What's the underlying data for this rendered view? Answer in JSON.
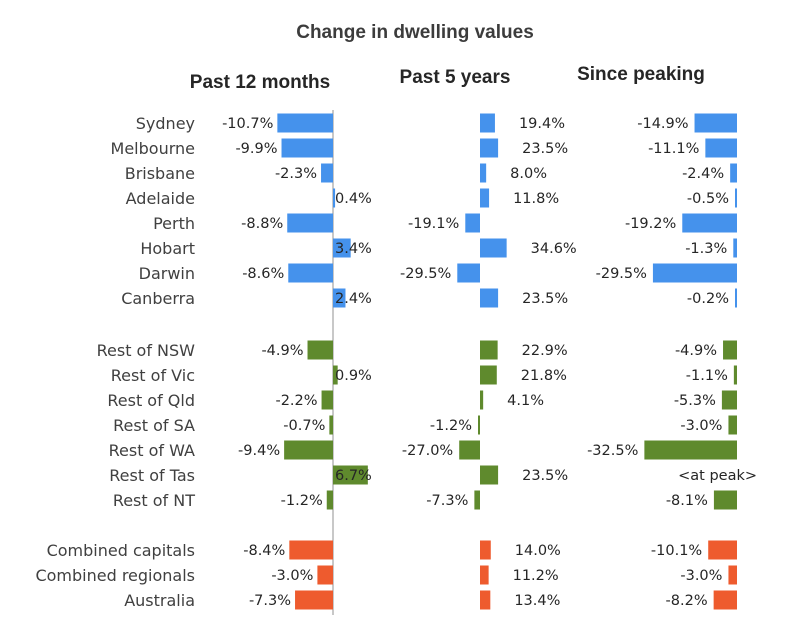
{
  "chart_data": {
    "type": "bar",
    "orientation": "horizontal",
    "title": "Change in dwelling values",
    "categories": [
      "Sydney",
      "Melbourne",
      "Brisbane",
      "Adelaide",
      "Perth",
      "Hobart",
      "Darwin",
      "Canberra",
      "Rest of NSW",
      "Rest of Vic",
      "Rest of Qld",
      "Rest of SA",
      "Rest of WA",
      "Rest of Tas",
      "Rest of NT",
      "Combined capitals",
      "Combined regionals",
      "Australia"
    ],
    "groups": [
      {
        "color": "#4592ec",
        "count": 8
      },
      {
        "color": "#5f8a2d",
        "count": 7
      },
      {
        "color": "#ee5b2e",
        "count": 3
      }
    ],
    "series": [
      {
        "panel_title": "Past 12 months",
        "values": [
          -10.7,
          -9.9,
          -2.3,
          0.4,
          -8.8,
          3.4,
          -8.6,
          2.4,
          -4.9,
          0.9,
          -2.2,
          -0.7,
          -9.4,
          6.7,
          -1.2,
          -8.4,
          -3.0,
          -7.3
        ],
        "labels": [
          "-10.7%",
          "-9.9%",
          "-2.3%",
          "0.4%",
          "-8.8%",
          "3.4%",
          "-8.6%",
          "2.4%",
          "-4.9%",
          "0.9%",
          "-2.2%",
          "-0.7%",
          "-9.4%",
          "6.7%",
          "-1.2%",
          "-8.4%",
          "-3.0%",
          "-7.3%"
        ]
      },
      {
        "panel_title": "Past 5 years",
        "values": [
          19.4,
          23.5,
          8.0,
          11.8,
          -19.1,
          34.6,
          -29.5,
          23.5,
          22.9,
          21.8,
          4.1,
          -1.2,
          -27.0,
          23.5,
          -7.3,
          14.0,
          11.2,
          13.4
        ],
        "labels": [
          "19.4%",
          "23.5%",
          "8.0%",
          "11.8%",
          "-19.1%",
          "34.6%",
          "-29.5%",
          "23.5%",
          "22.9%",
          "21.8%",
          "4.1%",
          "-1.2%",
          "-27.0%",
          "23.5%",
          "-7.3%",
          "14.0%",
          "11.2%",
          "13.4%"
        ]
      },
      {
        "panel_title": "Since peaking",
        "values": [
          -14.9,
          -11.1,
          -2.4,
          -0.5,
          -19.2,
          -1.3,
          -29.5,
          -0.2,
          -4.9,
          -1.1,
          -5.3,
          -3.0,
          -32.5,
          null,
          -8.1,
          -10.1,
          -3.0,
          -8.2
        ],
        "labels": [
          "-14.9%",
          "-11.1%",
          "-2.4%",
          "-0.5%",
          "-19.2%",
          "-1.3%",
          "-29.5%",
          "-0.2%",
          "-4.9%",
          "-1.1%",
          "-5.3%",
          "-3.0%",
          "-32.5%",
          "<at peak>",
          "-8.1%",
          "-10.1%",
          "-3.0%",
          "-8.2%"
        ]
      }
    ],
    "axis_line_color": "#c8c8c8",
    "grid": false,
    "legend": "none"
  }
}
